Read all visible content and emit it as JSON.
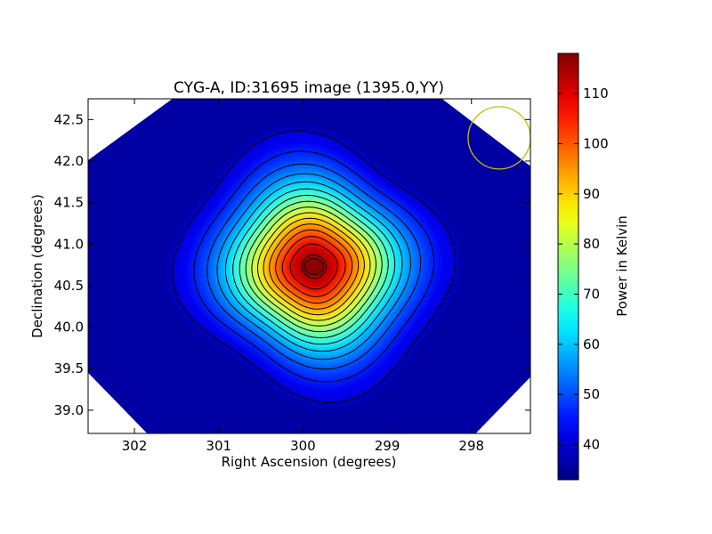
{
  "chart_data": {
    "type": "heatmap",
    "title": "CYG-A, ID:31695 image (1395.0,YY)",
    "xlabel": "Right Ascension (degrees)",
    "ylabel": "Declination (degrees)",
    "x_axis_inverted": true,
    "xlim": [
      302.55,
      297.3
    ],
    "ylim": [
      38.72,
      42.75
    ],
    "x_ticks": [
      "302",
      "301",
      "300",
      "299",
      "298"
    ],
    "x_tick_values": [
      302,
      301,
      300,
      299,
      298
    ],
    "y_ticks": [
      "39.0",
      "39.5",
      "40.0",
      "40.5",
      "41.0",
      "41.5",
      "42.0",
      "42.5"
    ],
    "y_tick_values": [
      39.0,
      39.5,
      40.0,
      40.5,
      41.0,
      41.5,
      42.0,
      42.5
    ],
    "colorbar": {
      "label": "Power in Kelvin",
      "min": 33.0,
      "max": 118.0,
      "ticks": [
        "40",
        "50",
        "60",
        "70",
        "80",
        "90",
        "100",
        "110"
      ],
      "tick_values": [
        40,
        50,
        60,
        70,
        80,
        90,
        100,
        110
      ],
      "colormap": "jet"
    },
    "source_peak": {
      "ra": 299.87,
      "dec": 40.73,
      "value": 117.0
    },
    "background_level": 36.0,
    "contour_levels": [
      40,
      45,
      50,
      55,
      60,
      65,
      70,
      75,
      80,
      85,
      90,
      95,
      100,
      105,
      110,
      115
    ],
    "beam_circle": {
      "ra": 297.67,
      "dec": 42.28,
      "color": "#bfbf00"
    },
    "colors": {
      "background": "#00007f",
      "contour": "#000000"
    }
  }
}
